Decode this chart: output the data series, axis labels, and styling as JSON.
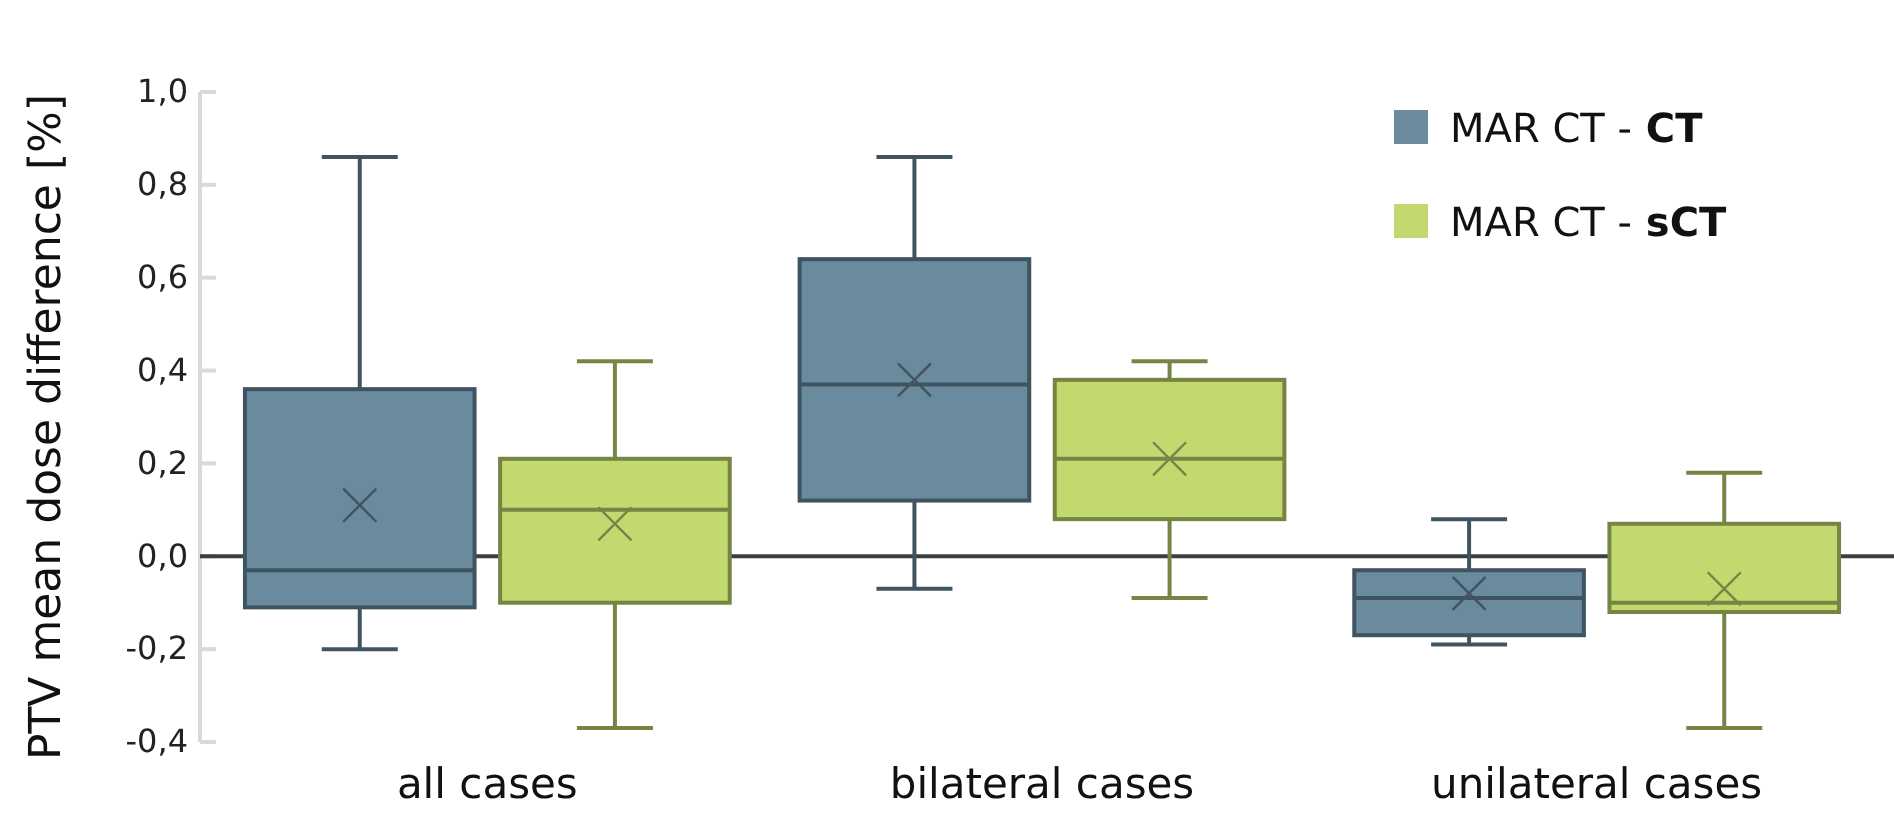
{
  "chart_data": {
    "type": "box",
    "ylabel": "PTV mean dose difference [%]",
    "categories": [
      "all cases",
      "bilateral cases",
      "unilateral cases"
    ],
    "ylim": [
      -0.4,
      1.0
    ],
    "yticks": [
      {
        "value": -0.4,
        "label": "-0,4"
      },
      {
        "value": -0.2,
        "label": "-0,2"
      },
      {
        "value": 0,
        "label": "0,0"
      },
      {
        "value": 0.2,
        "label": "0,2"
      },
      {
        "value": 0.4,
        "label": "0,4"
      },
      {
        "value": 0.6,
        "label": "0,6"
      },
      {
        "value": 0.8,
        "label": "0,8"
      },
      {
        "value": 1.0,
        "label": "1,0"
      }
    ],
    "grid": false,
    "legend": "top right",
    "marker": "cross",
    "ref_lines": [
      {
        "axis": "y",
        "value": 0,
        "color": "#3a3f44"
      }
    ],
    "series": [
      {
        "name": "MAR CT - CT",
        "color": "#6a8a9e",
        "boxes": [
          {
            "low": -0.2,
            "q1": -0.11,
            "median": -0.03,
            "q3": 0.36,
            "high": 0.86,
            "mean": 0.11
          },
          {
            "low": -0.07,
            "q1": 0.12,
            "median": 0.37,
            "q3": 0.64,
            "high": 0.86,
            "mean": 0.38
          },
          {
            "low": -0.19,
            "q1": -0.17,
            "median": -0.09,
            "q3": -0.03,
            "high": 0.08,
            "mean": -0.08
          }
        ]
      },
      {
        "name": "MAR CT - sCT",
        "color": "#c2d970",
        "boxes": [
          {
            "low": -0.37,
            "q1": -0.1,
            "median": 0.1,
            "q3": 0.21,
            "high": 0.42,
            "mean": 0.07
          },
          {
            "low": -0.09,
            "q1": 0.08,
            "median": 0.21,
            "q3": 0.38,
            "high": 0.42,
            "mean": 0.21
          },
          {
            "low": -0.37,
            "q1": -0.12,
            "median": -0.1,
            "q3": 0.07,
            "high": 0.18,
            "mean": -0.07
          }
        ]
      }
    ]
  }
}
